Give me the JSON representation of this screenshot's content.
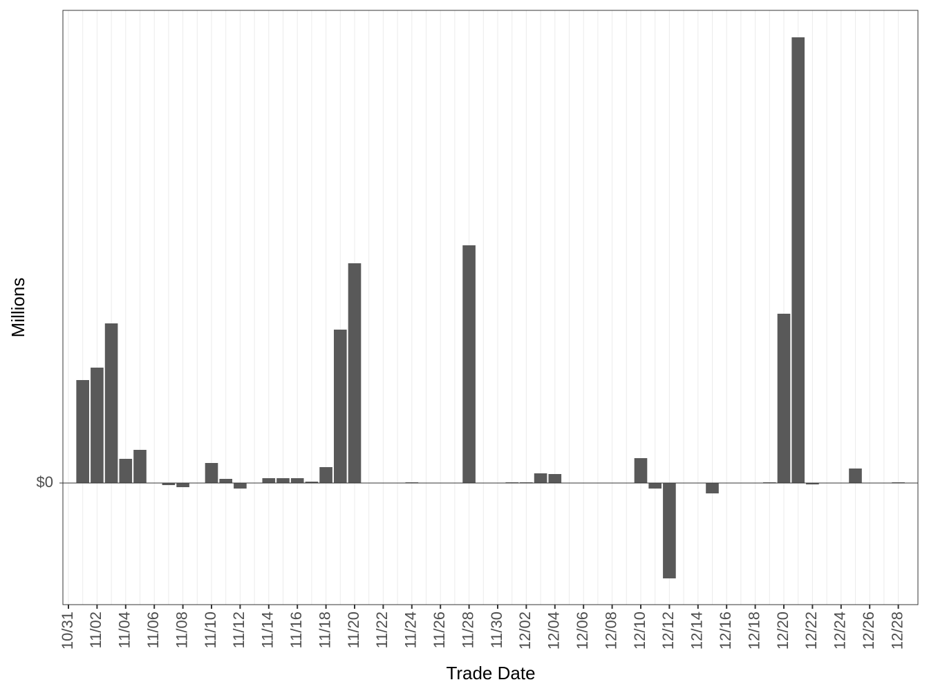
{
  "chart_data": {
    "type": "bar",
    "x_label": "Trade Date",
    "y_label": "Millions",
    "categories": [
      "10/31",
      null,
      "11/02",
      null,
      "11/04",
      null,
      "11/06",
      null,
      "11/08",
      null,
      "11/10",
      null,
      "11/12",
      null,
      "11/14",
      null,
      "11/16",
      null,
      "11/18",
      null,
      "11/20",
      null,
      "11/22",
      null,
      "11/24",
      null,
      "11/26",
      null,
      "11/28",
      null,
      "11/30",
      null,
      "12/02",
      null,
      "12/04",
      null,
      "12/06",
      null,
      "12/08",
      null,
      "12/10",
      null,
      "12/12",
      null,
      "12/14",
      null,
      "12/16",
      null,
      "12/18",
      null,
      "12/20",
      null,
      "12/22",
      null,
      "12/24",
      null,
      "12/26",
      null,
      "12/28"
    ],
    "values": [
      null,
      1.49,
      1.67,
      2.31,
      0.35,
      0.48,
      null,
      -0.03,
      -0.06,
      null,
      0.29,
      0.06,
      -0.08,
      null,
      0.07,
      0.07,
      0.07,
      0.02,
      0.23,
      2.22,
      3.18,
      null,
      null,
      null,
      0.01,
      null,
      null,
      null,
      3.44,
      null,
      null,
      0.01,
      0.01,
      0.14,
      0.13,
      null,
      null,
      null,
      null,
      null,
      0.36,
      -0.08,
      -1.38,
      null,
      null,
      -0.15,
      null,
      null,
      null,
      0.01,
      2.45,
      6.45,
      -0.02,
      null,
      null,
      0.21,
      null,
      null,
      0.01
    ],
    "color": "#595959",
    "ylim": [
      -1.76,
      6.84
    ],
    "yticks": [
      {
        "value": 0,
        "label": "$0"
      }
    ],
    "grid": true
  }
}
